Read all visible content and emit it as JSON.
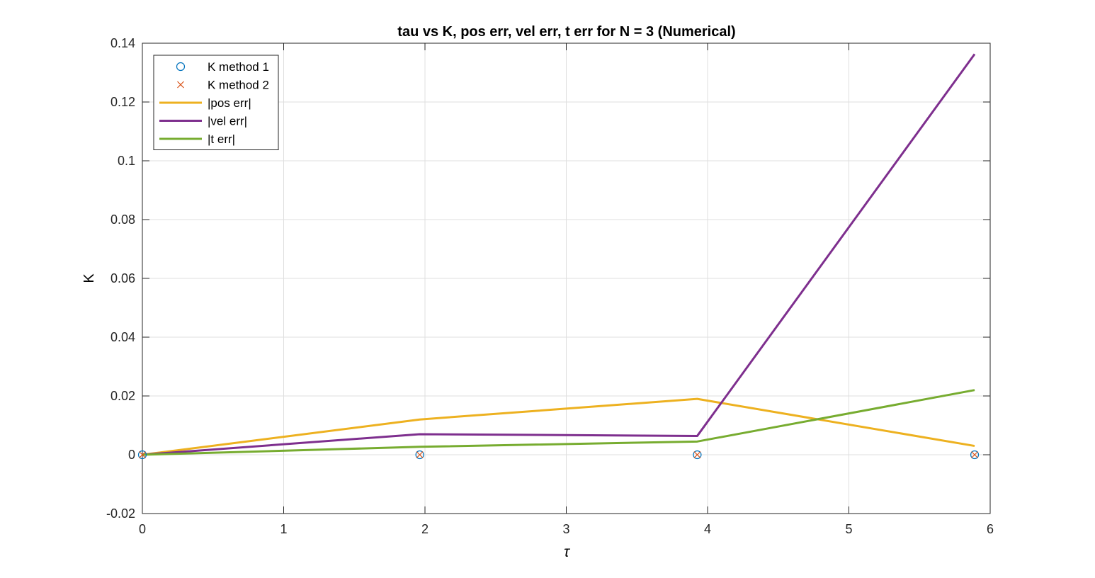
{
  "chart_data": {
    "type": "line",
    "title": "tau vs K, pos err, vel err, t err for N = 3 (Numerical)",
    "xlabel": "τ",
    "ylabel": "K",
    "xlim": [
      0,
      6
    ],
    "ylim": [
      -0.02,
      0.14
    ],
    "xticks": [
      0,
      1,
      2,
      3,
      4,
      5,
      6
    ],
    "xtick_labels": [
      "0",
      "1",
      "2",
      "3",
      "4",
      "5",
      "6"
    ],
    "yticks": [
      -0.02,
      0,
      0.02,
      0.04,
      0.06,
      0.08,
      0.1,
      0.12,
      0.14
    ],
    "ytick_labels": [
      "-0.02",
      "0",
      "0.02",
      "0.04",
      "0.06",
      "0.08",
      "0.1",
      "0.12",
      "0.14"
    ],
    "grid": true,
    "legend_position": "top-left",
    "x": [
      0,
      1.963,
      3.927,
      5.89
    ],
    "series": [
      {
        "name": "K method 1",
        "kind": "marker",
        "marker": "circle",
        "color": "#0072BD",
        "values": [
          0,
          0,
          0,
          0
        ]
      },
      {
        "name": "K method 2",
        "kind": "marker",
        "marker": "x",
        "color": "#D95319",
        "values": [
          0,
          0,
          0,
          0
        ]
      },
      {
        "name": "|pos err|",
        "kind": "line",
        "color": "#EDB120",
        "values": [
          0,
          0.012,
          0.019,
          0.003
        ]
      },
      {
        "name": "|vel err|",
        "kind": "line",
        "color": "#7E2F8E",
        "values": [
          0,
          0.007,
          0.0064,
          0.1363
        ]
      },
      {
        "name": "|t err|",
        "kind": "line",
        "color": "#77AC30",
        "values": [
          0,
          0.0027,
          0.0045,
          0.022
        ]
      }
    ]
  }
}
